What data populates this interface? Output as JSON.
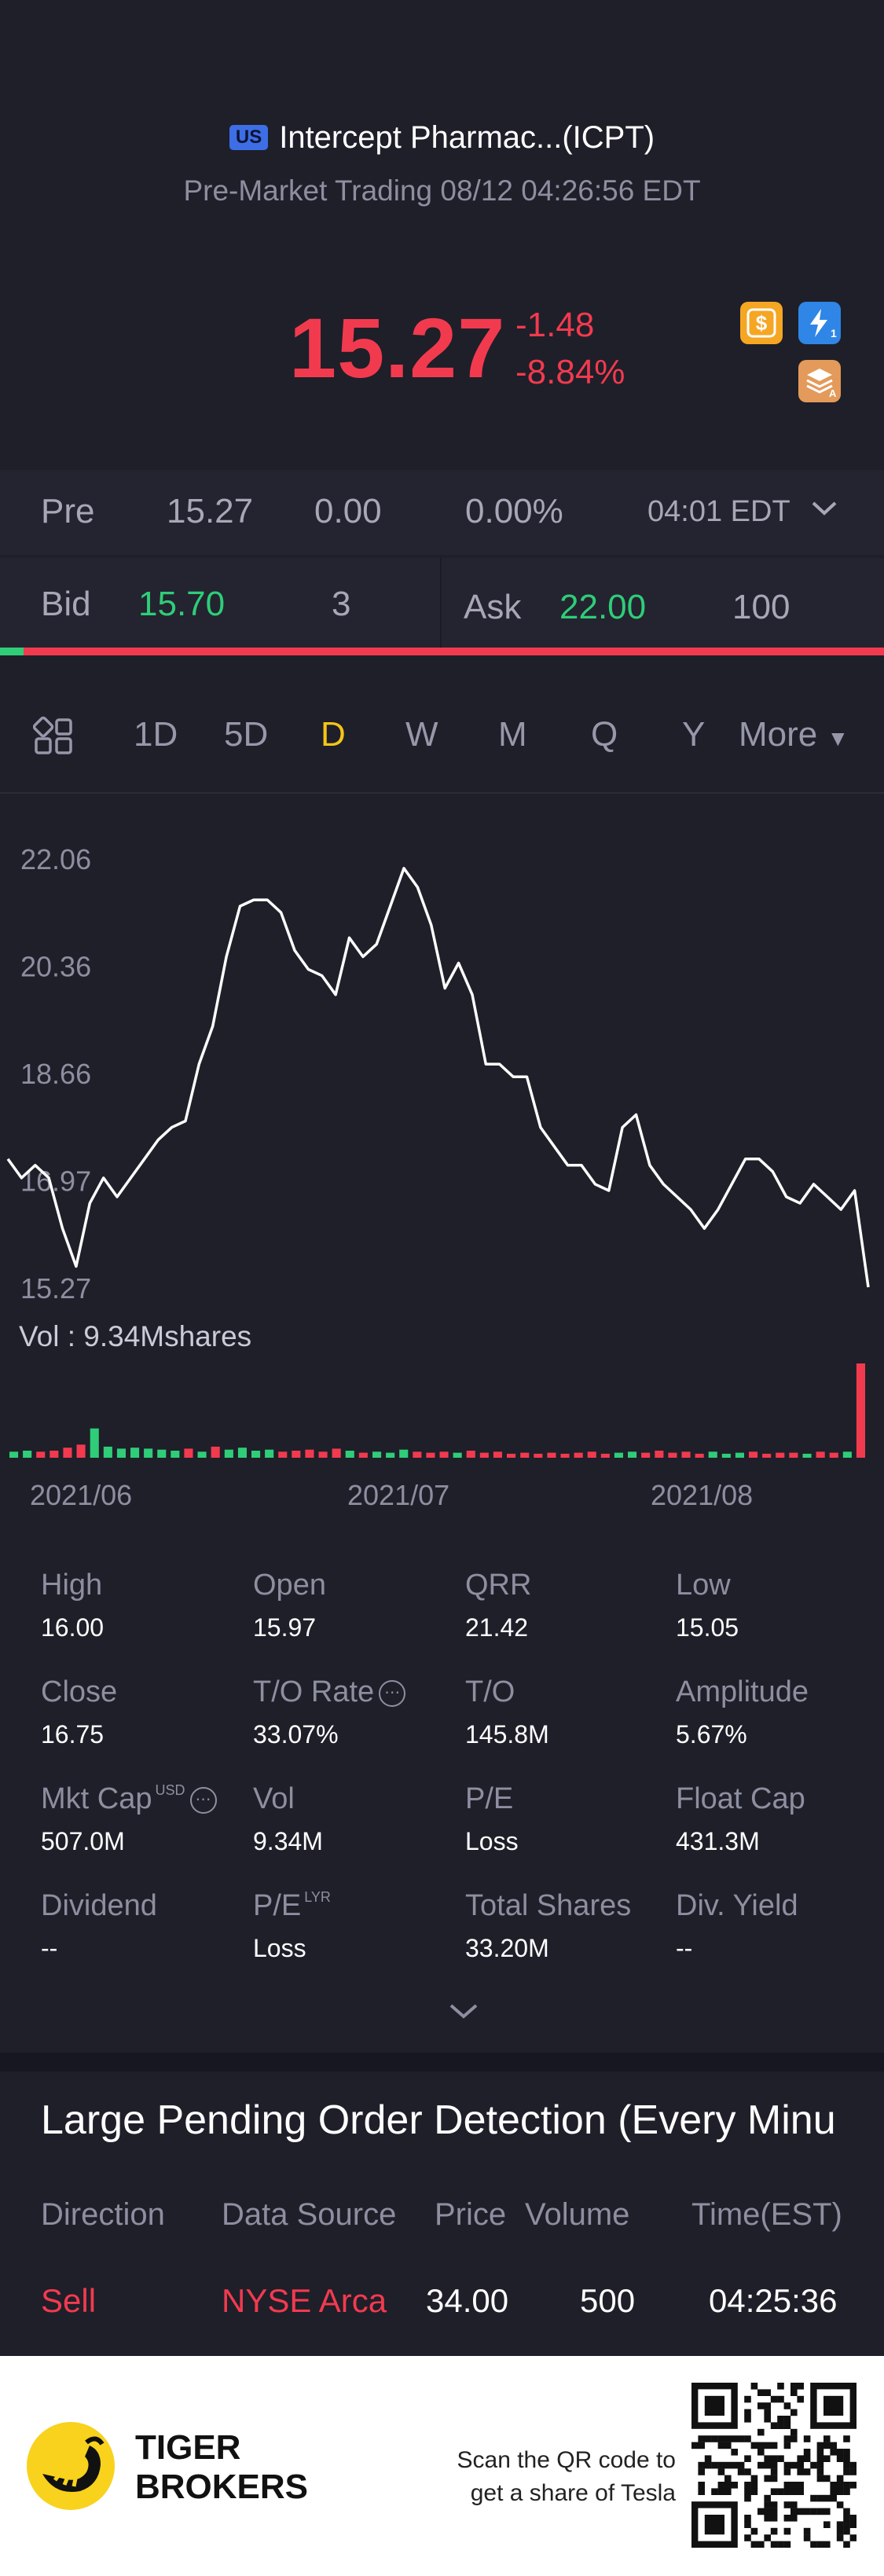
{
  "header": {
    "market_badge": "US",
    "title": "Intercept Pharmac...(ICPT)",
    "subtitle": "Pre-Market Trading 08/12 04:26:56 EDT",
    "price": "15.27",
    "change": "-1.48",
    "change_pct": "-8.84%",
    "icons": [
      "dollar-icon",
      "lightning-icon",
      "layers-icon"
    ]
  },
  "pre_row": {
    "label": "Pre",
    "price": "15.27",
    "change": "0.00",
    "change_pct": "0.00%",
    "time": "04:01 EDT"
  },
  "bid_ask": {
    "bid_label": "Bid",
    "bid_price": "15.70",
    "bid_size": "3",
    "ask_label": "Ask",
    "ask_price": "22.00",
    "ask_size": "100"
  },
  "tabs": {
    "items": [
      "1D",
      "5D",
      "D",
      "W",
      "M",
      "Q",
      "Y"
    ],
    "active": "D",
    "more": "More"
  },
  "chart_data": {
    "type": "line",
    "y_ticks": [
      "22.06",
      "20.36",
      "18.66",
      "16.97",
      "15.27"
    ],
    "ylim": [
      15.27,
      22.06
    ],
    "x_ticks": [
      "2021/06",
      "2021/07",
      "2021/08"
    ],
    "volume_label": "Vol  : 9.34Mshares",
    "series": [
      {
        "values": [
          17.3,
          17.0,
          17.2,
          17.0,
          16.2,
          15.6,
          16.6,
          17.0,
          16.7,
          17.0,
          17.3,
          17.6,
          17.8,
          17.9,
          18.8,
          19.4,
          20.5,
          21.3,
          21.4,
          21.4,
          21.2,
          20.6,
          20.3,
          20.2,
          19.9,
          20.8,
          20.5,
          20.7,
          21.3,
          21.9,
          21.6,
          21.0,
          20.0,
          20.4,
          19.9,
          18.8,
          18.8,
          18.6,
          18.6,
          17.8,
          17.5,
          17.2,
          17.2,
          16.9,
          16.8,
          17.8,
          18.0,
          17.2,
          16.9,
          16.7,
          16.5,
          16.2,
          16.5,
          16.9,
          17.3,
          17.3,
          17.1,
          16.7,
          16.6,
          16.9,
          16.7,
          16.5,
          16.8,
          15.27
        ]
      }
    ],
    "volume": {
      "max": 9.34,
      "values": [
        0.6,
        0.7,
        0.6,
        0.7,
        1.0,
        1.3,
        2.9,
        1.1,
        0.9,
        1.0,
        0.9,
        0.8,
        0.7,
        0.9,
        0.6,
        1.1,
        0.8,
        1.0,
        0.7,
        0.8,
        0.6,
        0.7,
        0.8,
        0.6,
        0.9,
        0.7,
        0.5,
        0.6,
        0.5,
        0.8,
        0.6,
        0.5,
        0.6,
        0.5,
        0.7,
        0.5,
        0.6,
        0.4,
        0.5,
        0.4,
        0.5,
        0.4,
        0.5,
        0.6,
        0.4,
        0.5,
        0.6,
        0.5,
        0.7,
        0.5,
        0.6,
        0.4,
        0.6,
        0.4,
        0.5,
        0.6,
        0.4,
        0.5,
        0.5,
        0.4,
        0.6,
        0.5,
        0.6,
        9.34
      ],
      "up": [
        true,
        true,
        false,
        false,
        false,
        false,
        true,
        true,
        true,
        true,
        true,
        true,
        true,
        false,
        true,
        false,
        true,
        true,
        true,
        true,
        false,
        false,
        false,
        false,
        false,
        true,
        false,
        true,
        true,
        true,
        false,
        false,
        false,
        true,
        false,
        false,
        false,
        false,
        false,
        false,
        false,
        false,
        false,
        false,
        false,
        true,
        true,
        false,
        false,
        false,
        false,
        false,
        true,
        true,
        true,
        false,
        false,
        false,
        false,
        true,
        false,
        false,
        true,
        false
      ]
    }
  },
  "stats": [
    {
      "label": "High",
      "value": "16.00"
    },
    {
      "label": "Open",
      "value": "15.97"
    },
    {
      "label": "QRR",
      "value": "21.42"
    },
    {
      "label": "Low",
      "value": "15.05"
    },
    {
      "label": "Close",
      "value": "16.75"
    },
    {
      "label": "T/O Rate",
      "value": "33.07%"
    },
    {
      "label": "T/O",
      "value": "145.8M"
    },
    {
      "label": "Amplitude",
      "value": "5.67%"
    },
    {
      "label": "Mkt Cap",
      "value": "507.0M",
      "sup": "USD"
    },
    {
      "label": "Vol",
      "value": "9.34M"
    },
    {
      "label": "P/E",
      "value": "Loss"
    },
    {
      "label": "Float Cap",
      "value": "431.3M"
    },
    {
      "label": "Dividend",
      "value": "--"
    },
    {
      "label": "P/E",
      "value": "Loss",
      "sup": "LYR"
    },
    {
      "label": "Total Shares",
      "value": "33.20M"
    },
    {
      "label": "Div. Yield",
      "value": "--"
    }
  ],
  "pending_orders": {
    "title": "Large Pending Order Detection (Every Minu",
    "headers": [
      "Direction",
      "Data Source",
      "Price",
      "Volume",
      "Time(EST)"
    ],
    "rows": [
      {
        "direction": "Sell",
        "source": "NYSE Arca",
        "price": "34.00",
        "volume": "500",
        "time": "04:25:36"
      }
    ]
  },
  "footer": {
    "brand_line1": "TIGER",
    "brand_line2": "BROKERS",
    "promo_line1": "Scan the QR code to",
    "promo_line2": "get a share of Tesla"
  },
  "colors": {
    "down": "#f23a4f",
    "up": "#2fcd78",
    "active_tab": "#f5c518",
    "background": "#1e1f29"
  }
}
